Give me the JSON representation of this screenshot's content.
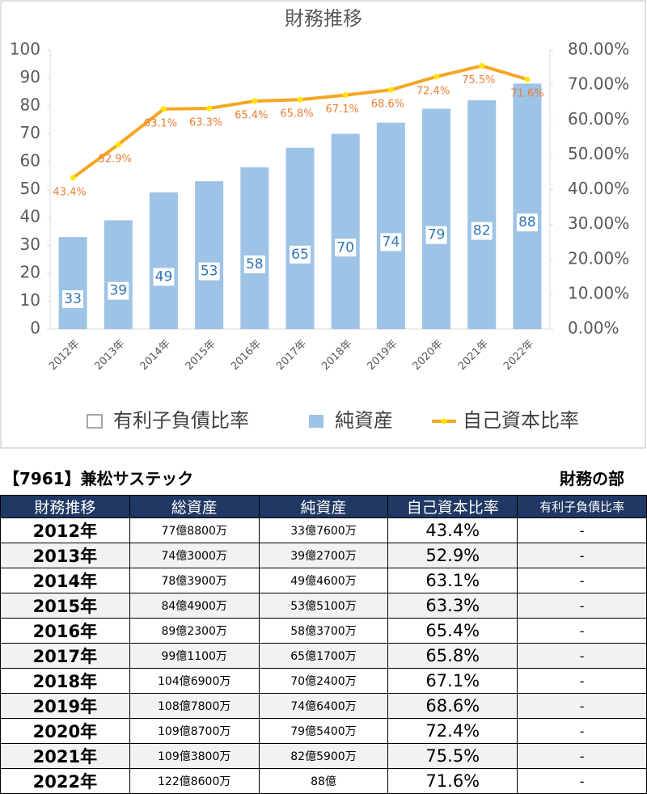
{
  "chart_data": {
    "type": "bar",
    "title": "財務推移",
    "categories": [
      "2012年",
      "2013年",
      "2014年",
      "2015年",
      "2016年",
      "2017年",
      "2018年",
      "2019年",
      "2020年",
      "2021年",
      "2022年"
    ],
    "series": [
      {
        "name": "有利子負債比率",
        "color": "#a6a6a6",
        "type": "line",
        "axis": "y2",
        "values": [
          null,
          null,
          null,
          null,
          null,
          null,
          null,
          null,
          null,
          null,
          null
        ]
      },
      {
        "name": "純資産",
        "color": "#9dc3e6",
        "type": "bar",
        "values": [
          33,
          39,
          49,
          53,
          58,
          65,
          70,
          74,
          79,
          82,
          88
        ]
      },
      {
        "name": "自己資本比率",
        "color": "#f5a623",
        "type": "line",
        "axis": "y2",
        "values": [
          43.4,
          52.9,
          63.1,
          63.3,
          65.4,
          65.8,
          67.1,
          68.6,
          72.4,
          75.5,
          71.6
        ],
        "value_labels": [
          "43.4%",
          "52.9%",
          "63.1%",
          "63.3%",
          "65.4%",
          "65.8%",
          "67.1%",
          "68.6%",
          "72.4%",
          "75.5%",
          "71.6%"
        ]
      }
    ],
    "ylim": [
      0,
      100
    ],
    "yticks": [
      0,
      10,
      20,
      30,
      40,
      50,
      60,
      70,
      80,
      90,
      100
    ],
    "y2lim": [
      0,
      80
    ],
    "y2ticks": [
      {
        "value": 0,
        "label": "0.00%"
      },
      {
        "value": 10,
        "label": "10.00%"
      },
      {
        "value": 20,
        "label": "20.00%"
      },
      {
        "value": 30,
        "label": "30.00%"
      },
      {
        "value": 40,
        "label": "40.00%"
      },
      {
        "value": 50,
        "label": "50.00%"
      },
      {
        "value": 60,
        "label": "60.00%"
      },
      {
        "value": 70,
        "label": "70.00%"
      },
      {
        "value": 80,
        "label": "80.00%"
      }
    ],
    "grid": false,
    "legend": "bottom"
  },
  "table": {
    "title": "【7961】兼松サステック",
    "caption": "財務の部",
    "header": [
      "財務推移",
      "総資産",
      "純資産",
      "自己資本比率",
      "有利子負債比率"
    ],
    "rows": [
      [
        "2012年",
        "77億8800万",
        "33億7600万",
        "43.4%",
        "-"
      ],
      [
        "2013年",
        "74億3000万",
        "39億2700万",
        "52.9%",
        "-"
      ],
      [
        "2014年",
        "78億3900万",
        "49億4600万",
        "63.1%",
        "-"
      ],
      [
        "2015年",
        "84億4900万",
        "53億5100万",
        "63.3%",
        "-"
      ],
      [
        "2016年",
        "89億2300万",
        "58億3700万",
        "65.4%",
        "-"
      ],
      [
        "2017年",
        "99億1100万",
        "65億1700万",
        "65.8%",
        "-"
      ],
      [
        "2018年",
        "104億6900万",
        "70億2400万",
        "67.1%",
        "-"
      ],
      [
        "2019年",
        "108億7800万",
        "74億6400万",
        "68.6%",
        "-"
      ],
      [
        "2020年",
        "109億8700万",
        "79億5400万",
        "72.4%",
        "-"
      ],
      [
        "2021年",
        "109億3800万",
        "82億5900万",
        "75.5%",
        "-"
      ],
      [
        "2022年",
        "122億8600万",
        "88億",
        "71.6%",
        "-"
      ]
    ]
  }
}
